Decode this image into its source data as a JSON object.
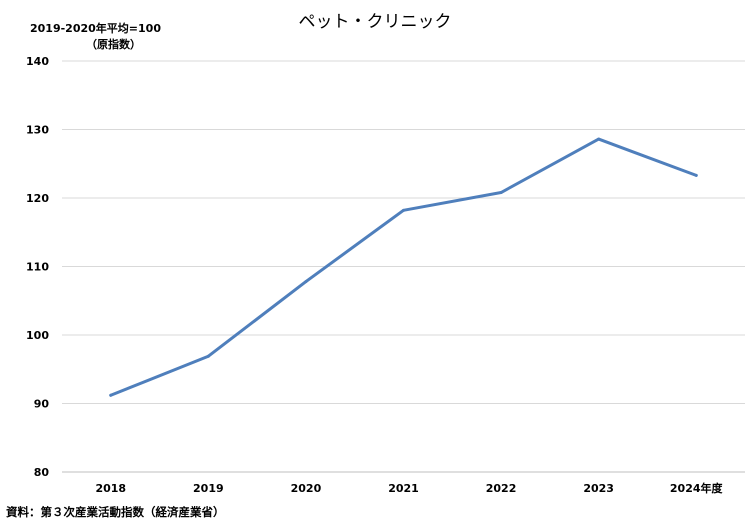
{
  "chart_data": {
    "type": "line",
    "title": "ペット・クリニック",
    "unit_label_line1": "2019-2020年平均=100",
    "unit_label_line2": "（原指数）",
    "categories": [
      "2018",
      "2019",
      "2020",
      "2021",
      "2022",
      "2023",
      "2024年度"
    ],
    "series": [
      {
        "values": [
          91.2,
          96.9,
          107.8,
          118.2,
          120.8,
          128.6,
          123.3
        ]
      }
    ],
    "ylim": [
      80,
      140
    ],
    "yticks": [
      80,
      90,
      100,
      110,
      120,
      130,
      140
    ],
    "grid": true,
    "line_color": "#4f7fbc",
    "source": "資料：第３次産業活動指数（経済産業省）"
  }
}
